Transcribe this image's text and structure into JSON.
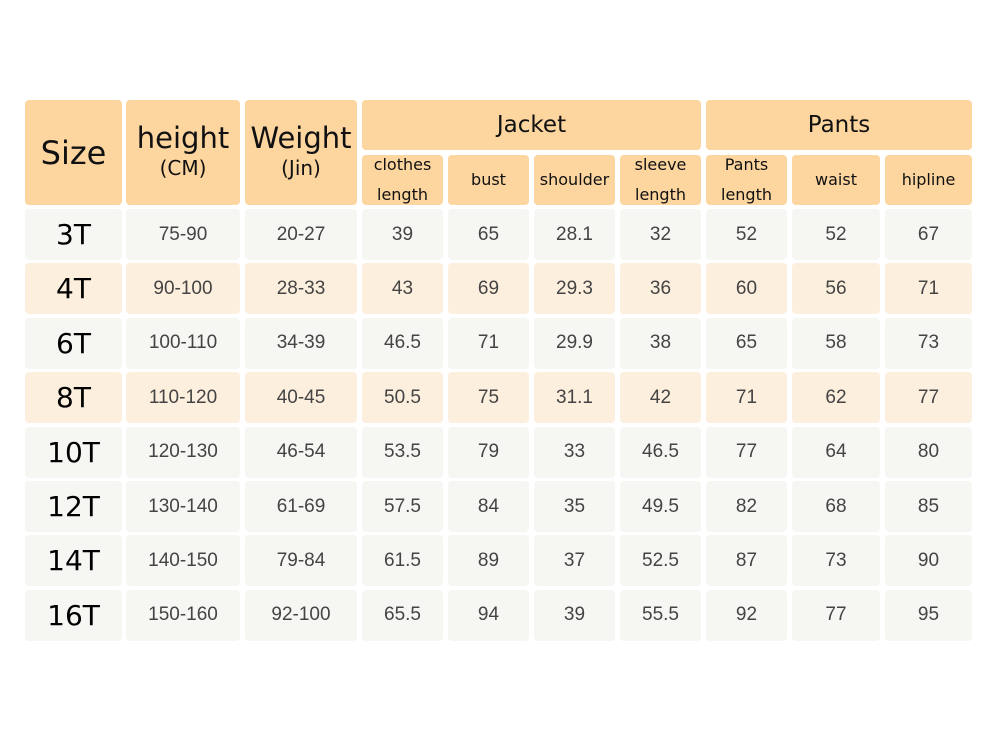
{
  "header": {
    "size": "Size",
    "height": {
      "label": "height",
      "unit": "(CM)"
    },
    "weight": {
      "label": "Weight",
      "unit": "(Jin)"
    },
    "groups": {
      "jacket": "Jacket",
      "pants": "Pants"
    },
    "subcolumns": [
      "clothes length",
      "bust",
      "shoulder",
      "sleeve length",
      "Pants length",
      "waist",
      "hipline"
    ]
  },
  "rows": [
    {
      "size": "3T",
      "values": [
        "75-90",
        "20-27",
        "39",
        "65",
        "28.1",
        "32",
        "52",
        "52",
        "67"
      ]
    },
    {
      "size": "4T",
      "values": [
        "90-100",
        "28-33",
        "43",
        "69",
        "29.3",
        "36",
        "60",
        "56",
        "71"
      ]
    },
    {
      "size": "6T",
      "values": [
        "100-110",
        "34-39",
        "46.5",
        "71",
        "29.9",
        "38",
        "65",
        "58",
        "73"
      ]
    },
    {
      "size": "8T",
      "values": [
        "110-120",
        "40-45",
        "50.5",
        "75",
        "31.1",
        "42",
        "71",
        "62",
        "77"
      ]
    },
    {
      "size": "10T",
      "values": [
        "120-130",
        "46-54",
        "53.5",
        "79",
        "33",
        "46.5",
        "77",
        "64",
        "80"
      ]
    },
    {
      "size": "12T",
      "values": [
        "130-140",
        "61-69",
        "57.5",
        "84",
        "35",
        "49.5",
        "82",
        "68",
        "85"
      ]
    },
    {
      "size": "14T",
      "values": [
        "140-150",
        "79-84",
        "61.5",
        "89",
        "37",
        "52.5",
        "87",
        "73",
        "90"
      ]
    },
    {
      "size": "16T",
      "values": [
        "150-160",
        "92-100",
        "65.5",
        "94",
        "39",
        "55.5",
        "92",
        "77",
        "95"
      ]
    }
  ],
  "colors": {
    "header": "#fcd59f",
    "row_grey": "#f6f6f3",
    "row_peach": "#fdefde"
  }
}
